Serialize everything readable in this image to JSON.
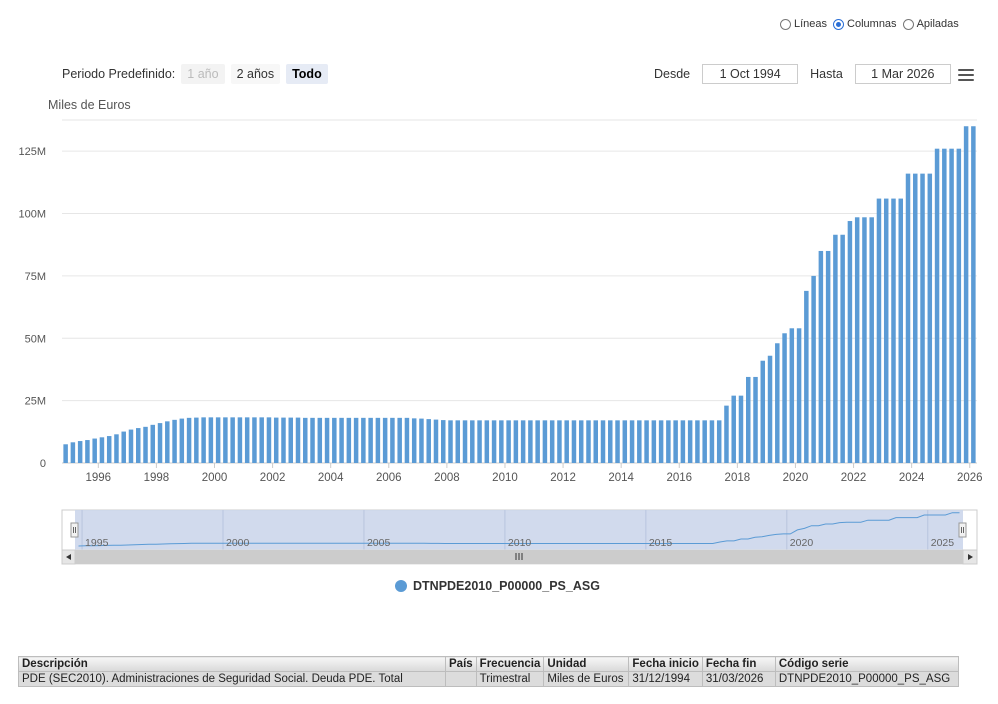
{
  "chart_type_selector": {
    "options": [
      {
        "label": "Líneas",
        "checked": false
      },
      {
        "label": "Columnas",
        "checked": true
      },
      {
        "label": "Apiladas",
        "checked": false
      }
    ]
  },
  "range_selector": {
    "label": "Periodo Predefinido:",
    "buttons": [
      {
        "label": "1 año",
        "state": "disabled"
      },
      {
        "label": "2 años",
        "state": "normal"
      },
      {
        "label": "Todo",
        "state": "active"
      }
    ]
  },
  "date_range": {
    "from_label": "Desde",
    "from_value": "1 Oct 1994",
    "to_label": "Hasta",
    "to_value": "1 Mar 2026"
  },
  "colors": {
    "series": "#5b9bd5",
    "navigator_fill": "#ccd6eb",
    "gridline": "#e6e6e6"
  },
  "chart_data": {
    "type": "bar",
    "ylabel": "Miles de Euros",
    "ylim": [
      0,
      137500000
    ],
    "y_ticks": [
      0,
      25000000,
      50000000,
      75000000,
      100000000,
      125000000
    ],
    "y_tick_labels": [
      "0",
      "25M",
      "50M",
      "75M",
      "100M",
      "125M"
    ],
    "x_tick_labels": [
      "1996",
      "1998",
      "2000",
      "2002",
      "2004",
      "2006",
      "2008",
      "2010",
      "2012",
      "2014",
      "2016",
      "2018",
      "2020",
      "2022",
      "2024",
      "2026"
    ],
    "x_range": [
      "1994-10",
      "2026-03"
    ],
    "grid": "horizontal",
    "series": [
      {
        "name": "DTNPDE2010_P00000_PS_ASG",
        "x": [
          "1994Q4",
          "1995Q1",
          "1995Q2",
          "1995Q3",
          "1995Q4",
          "1996Q1",
          "1996Q2",
          "1996Q3",
          "1996Q4",
          "1997Q1",
          "1997Q2",
          "1997Q3",
          "1997Q4",
          "1998Q1",
          "1998Q2",
          "1998Q3",
          "1998Q4",
          "1999Q1",
          "1999Q2",
          "1999Q3",
          "1999Q4",
          "2000Q1",
          "2000Q2",
          "2000Q3",
          "2000Q4",
          "2001Q1",
          "2001Q2",
          "2001Q3",
          "2001Q4",
          "2002Q1",
          "2002Q2",
          "2002Q3",
          "2002Q4",
          "2003Q1",
          "2003Q2",
          "2003Q3",
          "2003Q4",
          "2004Q1",
          "2004Q2",
          "2004Q3",
          "2004Q4",
          "2005Q1",
          "2005Q2",
          "2005Q3",
          "2005Q4",
          "2006Q1",
          "2006Q2",
          "2006Q3",
          "2006Q4",
          "2007Q1",
          "2007Q2",
          "2007Q3",
          "2007Q4",
          "2008Q1",
          "2008Q2",
          "2008Q3",
          "2008Q4",
          "2009Q1",
          "2009Q2",
          "2009Q3",
          "2009Q4",
          "2010Q1",
          "2010Q2",
          "2010Q3",
          "2010Q4",
          "2011Q1",
          "2011Q2",
          "2011Q3",
          "2011Q4",
          "2012Q1",
          "2012Q2",
          "2012Q3",
          "2012Q4",
          "2013Q1",
          "2013Q2",
          "2013Q3",
          "2013Q4",
          "2014Q1",
          "2014Q2",
          "2014Q3",
          "2014Q4",
          "2015Q1",
          "2015Q2",
          "2015Q3",
          "2015Q4",
          "2016Q1",
          "2016Q2",
          "2016Q3",
          "2016Q4",
          "2017Q1",
          "2017Q2",
          "2017Q3",
          "2017Q4",
          "2018Q1",
          "2018Q2",
          "2018Q3",
          "2018Q4",
          "2019Q1",
          "2019Q2",
          "2019Q3",
          "2019Q4",
          "2020Q1",
          "2020Q2",
          "2020Q3",
          "2020Q4",
          "2021Q1",
          "2021Q2",
          "2021Q3",
          "2021Q4",
          "2022Q1",
          "2022Q2",
          "2022Q3",
          "2022Q4",
          "2023Q1",
          "2023Q2",
          "2023Q3",
          "2023Q4",
          "2024Q1",
          "2024Q2",
          "2024Q3",
          "2024Q4",
          "2025Q1",
          "2025Q2",
          "2025Q3",
          "2025Q4",
          "2026Q1"
        ],
        "values": [
          7500000,
          8300000,
          8800000,
          9200000,
          9800000,
          10300000,
          10800000,
          11500000,
          12600000,
          13400000,
          14000000,
          14500000,
          15300000,
          16000000,
          16700000,
          17300000,
          17800000,
          18100000,
          18200000,
          18300000,
          18300000,
          18300000,
          18300000,
          18300000,
          18300000,
          18300000,
          18300000,
          18300000,
          18300000,
          18200000,
          18200000,
          18200000,
          18200000,
          18100000,
          18100000,
          18100000,
          18100000,
          18100000,
          18100000,
          18100000,
          18100000,
          18100000,
          18100000,
          18100000,
          18100000,
          18100000,
          18100000,
          18100000,
          17900000,
          17800000,
          17600000,
          17400000,
          17200000,
          17100000,
          17100000,
          17100000,
          17100000,
          17100000,
          17100000,
          17100000,
          17100000,
          17100000,
          17100000,
          17100000,
          17100000,
          17100000,
          17100000,
          17100000,
          17100000,
          17100000,
          17100000,
          17100000,
          17100000,
          17100000,
          17100000,
          17100000,
          17100000,
          17100000,
          17100000,
          17100000,
          17100000,
          17100000,
          17100000,
          17100000,
          17100000,
          17100000,
          17100000,
          17100000,
          17100000,
          17100000,
          17100000,
          23000000,
          27000000,
          27000000,
          34500000,
          34500000,
          41000000,
          43000000,
          48000000,
          52000000,
          54000000,
          54000000,
          69000000,
          75000000,
          85000000,
          85000000,
          91500000,
          91500000,
          97000000,
          98500000,
          98500000,
          98500000,
          106000000,
          106000000,
          106000000,
          106000000,
          116000000,
          116000000,
          116000000,
          116000000,
          126000000,
          126000000,
          126000000,
          126000000,
          135000000,
          135000000
        ]
      }
    ]
  },
  "navigator": {
    "labels": [
      "1995",
      "2000",
      "2005",
      "2010",
      "2015",
      "2020",
      "2025"
    ]
  },
  "legend": {
    "label": "DTNPDE2010_P00000_PS_ASG"
  },
  "meta_table": {
    "headers": [
      "Descripción",
      "País",
      "Frecuencia",
      "Unidad",
      "Fecha inicio",
      "Fecha fin",
      "Código serie"
    ],
    "row": [
      "PDE (SEC2010). Administraciones de Seguridad Social. Deuda PDE. Total",
      "",
      "Trimestral",
      "Miles de Euros",
      "31/12/1994",
      "31/03/2026",
      "DTNPDE2010_P00000_PS_ASG"
    ]
  }
}
